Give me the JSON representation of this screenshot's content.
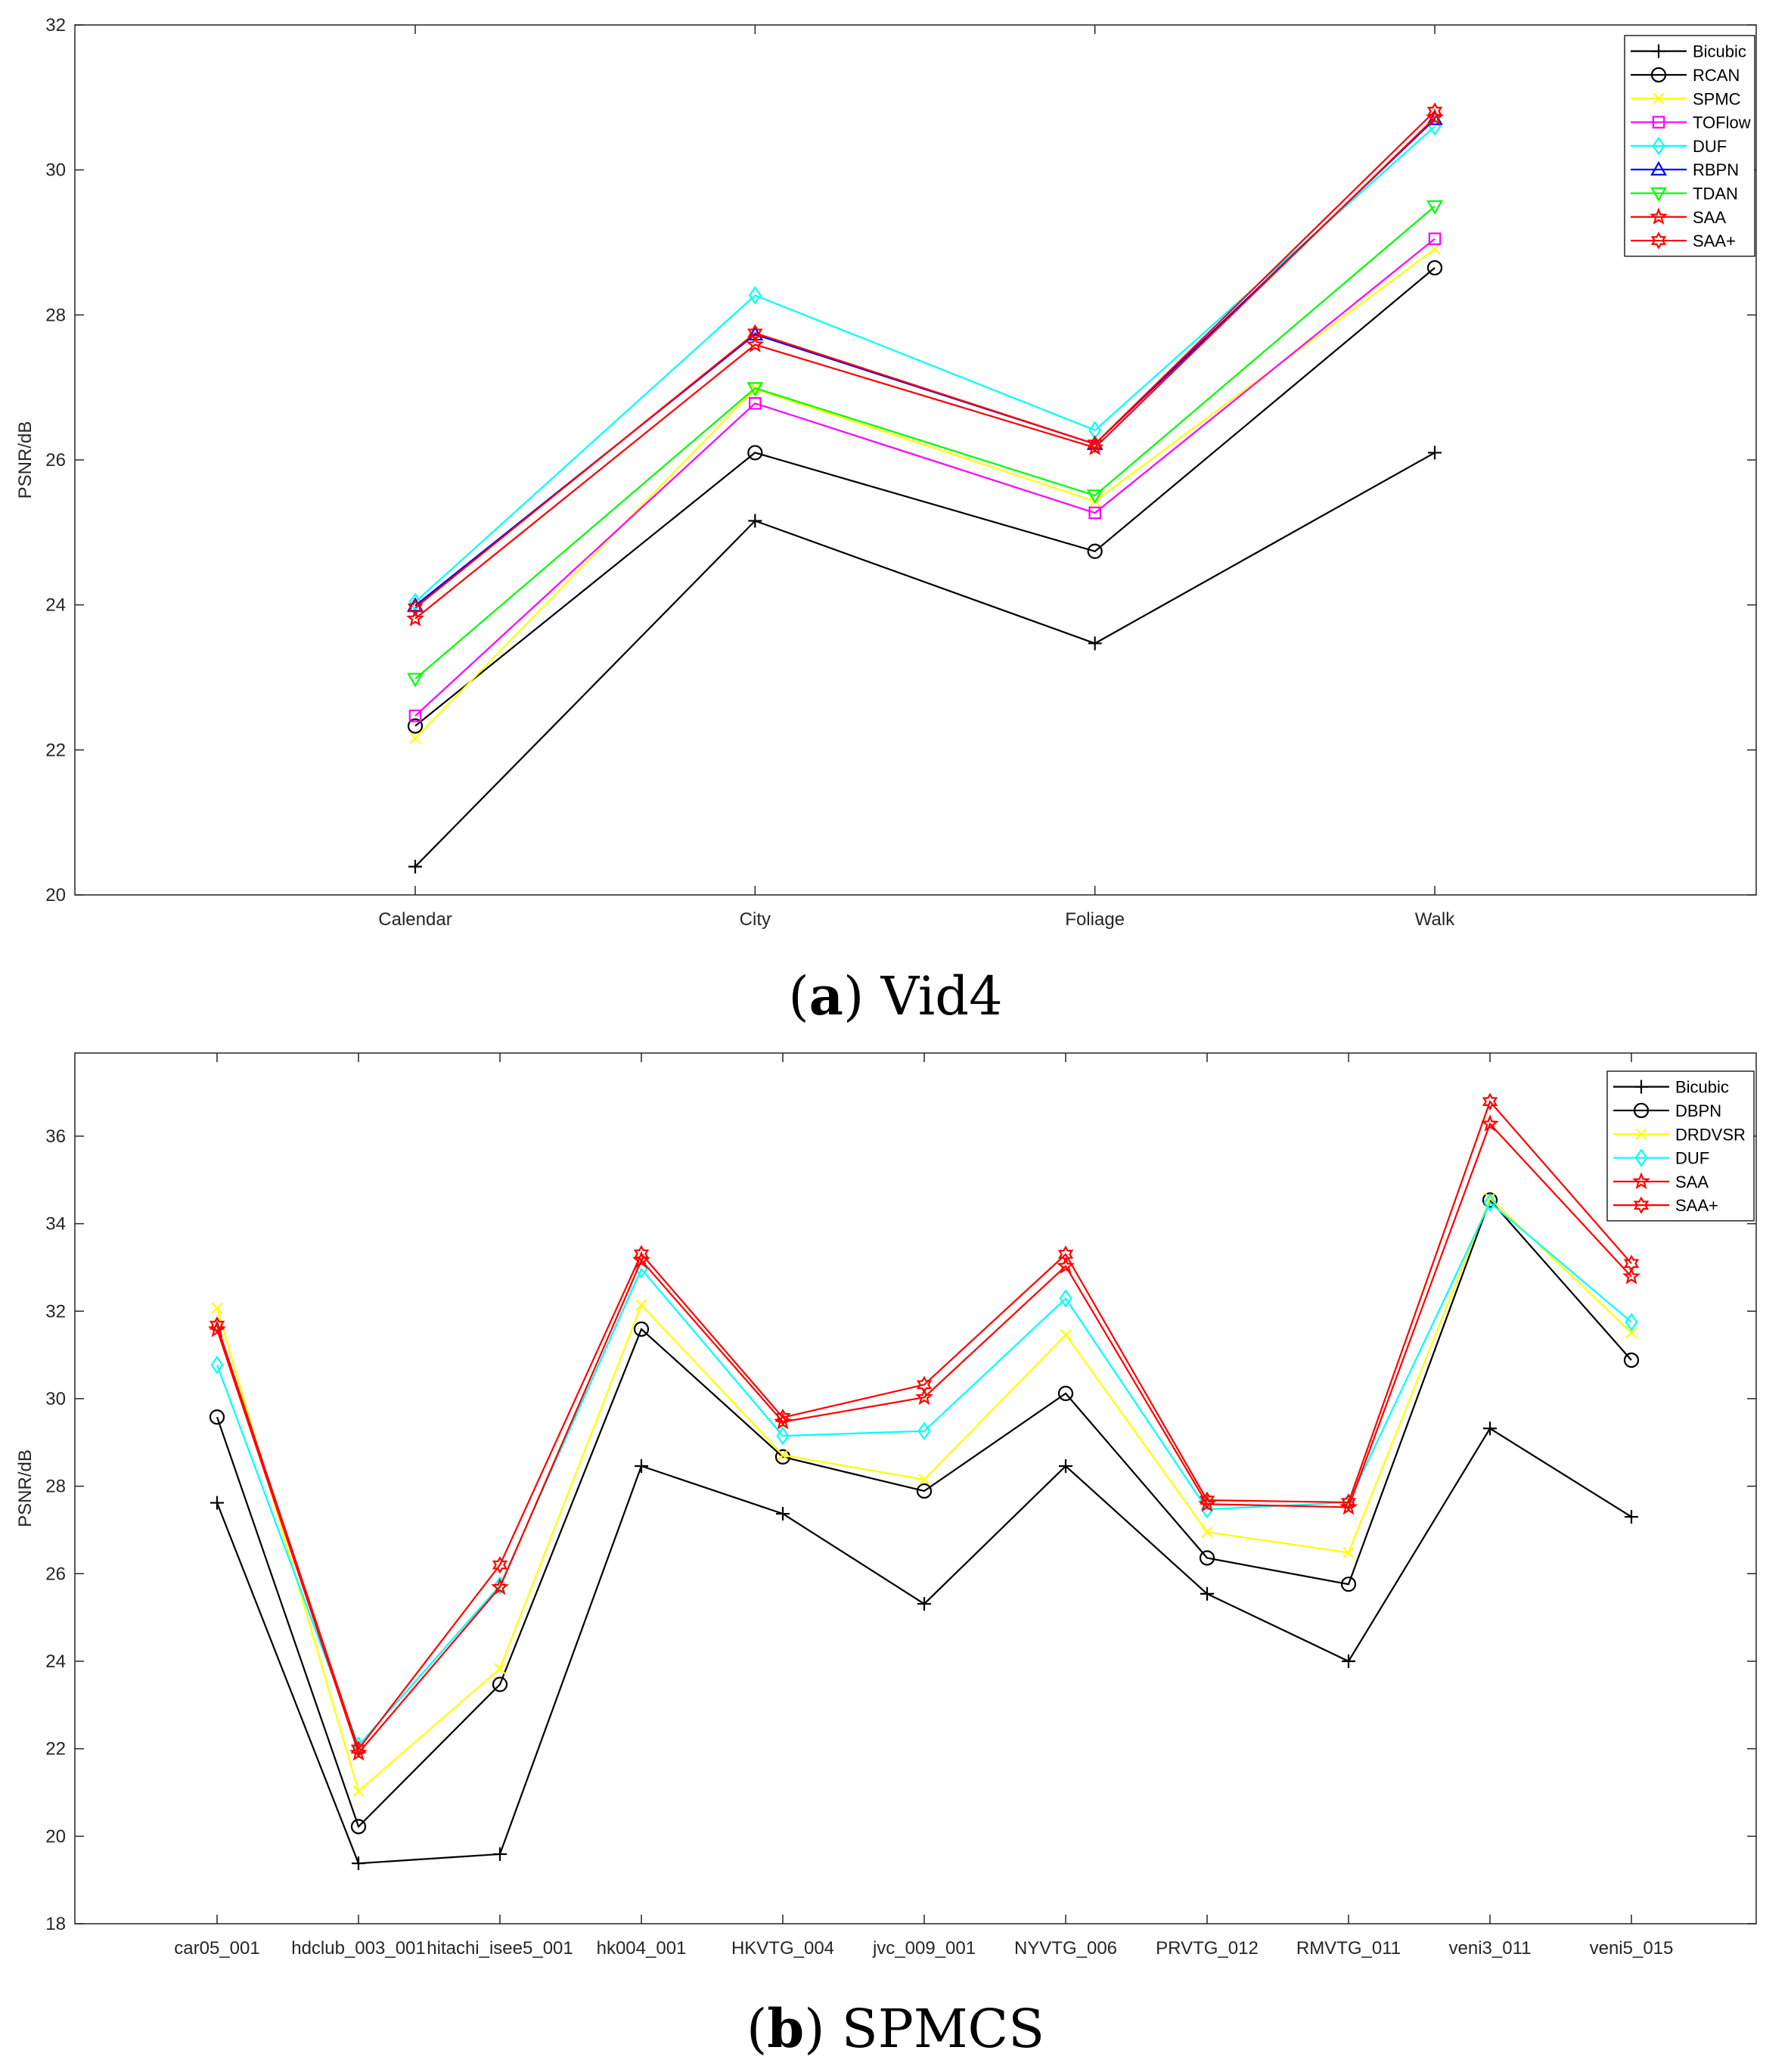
{
  "chart_data": [
    {
      "type": "line",
      "title": "",
      "xlabel": "",
      "ylabel": "PSNR/dB",
      "ylim": [
        20,
        32
      ],
      "yticks": [
        20,
        22,
        24,
        26,
        28,
        30,
        32
      ],
      "categories": [
        "Calendar",
        "City",
        "Foliage",
        "Walk"
      ],
      "caption_letter": "a",
      "caption_text": " Vid4",
      "legend_position": "top-right",
      "series": [
        {
          "name": "Bicubic",
          "color": "#000000",
          "marker": "plus",
          "values": [
            20.39,
            25.16,
            23.47,
            26.1
          ]
        },
        {
          "name": "RCAN",
          "color": "#000000",
          "marker": "circle",
          "values": [
            22.33,
            26.1,
            24.74,
            28.65
          ]
        },
        {
          "name": "SPMC",
          "color": "#ffff00",
          "marker": "x",
          "values": [
            22.16,
            26.98,
            25.43,
            28.91
          ]
        },
        {
          "name": "TOFlow",
          "color": "#ff00ff",
          "marker": "square",
          "values": [
            22.47,
            26.78,
            25.27,
            29.05
          ]
        },
        {
          "name": "DUF",
          "color": "#00ffff",
          "marker": "diamond",
          "values": [
            24.04,
            28.27,
            26.41,
            30.6
          ]
        },
        {
          "name": "RBPN",
          "color": "#0000ff",
          "marker": "triangle-up",
          "values": [
            23.99,
            27.73,
            26.22,
            30.7
          ]
        },
        {
          "name": "TDAN",
          "color": "#00ff00",
          "marker": "triangle-down",
          "values": [
            22.98,
            26.99,
            25.51,
            29.5
          ]
        },
        {
          "name": "SAA",
          "color": "#ff0000",
          "marker": "star5",
          "values": [
            23.81,
            27.59,
            26.17,
            30.72
          ]
        },
        {
          "name": "SAA+",
          "color": "#ff0000",
          "marker": "star6",
          "values": [
            23.96,
            27.75,
            26.22,
            30.81
          ]
        }
      ]
    },
    {
      "type": "line",
      "title": "",
      "xlabel": "",
      "ylabel": "PSNR/dB",
      "ylim": [
        18,
        37.9
      ],
      "yticks": [
        18,
        20,
        22,
        24,
        26,
        28,
        30,
        32,
        34,
        36
      ],
      "categories": [
        "car05_001",
        "hdclub_003_001",
        "hitachi_isee5_001",
        "hk004_001",
        "HKVTG_004",
        "jvc_009_001",
        "NYVTG_006",
        "PRVTG_012",
        "RMVTG_011",
        "veni3_011",
        "veni5_015"
      ],
      "caption_letter": "b",
      "caption_text": " SPMCS",
      "legend_position": "top-right",
      "series": [
        {
          "name": "Bicubic",
          "color": "#000000",
          "marker": "plus",
          "values": [
            27.62,
            19.38,
            19.59,
            28.46,
            27.37,
            25.31,
            28.46,
            25.54,
            24.0,
            29.32,
            27.3
          ]
        },
        {
          "name": "DBPN",
          "color": "#000000",
          "marker": "circle",
          "values": [
            29.58,
            20.22,
            23.47,
            31.59,
            28.67,
            27.89,
            30.12,
            26.36,
            25.76,
            34.54,
            30.88
          ]
        },
        {
          "name": "DRDVSR",
          "color": "#ffff00",
          "marker": "x",
          "values": [
            32.07,
            21.03,
            23.83,
            32.14,
            28.71,
            28.15,
            31.46,
            26.95,
            26.48,
            34.58,
            31.51
          ]
        },
        {
          "name": "DUF",
          "color": "#00ffff",
          "marker": "diamond",
          "values": [
            30.77,
            22.07,
            25.73,
            32.96,
            29.15,
            29.26,
            32.29,
            27.47,
            27.63,
            34.48,
            31.75
          ]
        },
        {
          "name": "SAA",
          "color": "#ff0000",
          "marker": "star5",
          "values": [
            31.58,
            21.9,
            25.69,
            33.16,
            29.47,
            30.03,
            33.03,
            27.59,
            27.52,
            36.28,
            32.79
          ]
        },
        {
          "name": "SAA+",
          "color": "#ff0000",
          "marker": "star6",
          "values": [
            31.68,
            21.99,
            26.2,
            33.31,
            29.57,
            30.32,
            33.3,
            27.68,
            27.63,
            36.79,
            33.09
          ]
        }
      ]
    }
  ]
}
